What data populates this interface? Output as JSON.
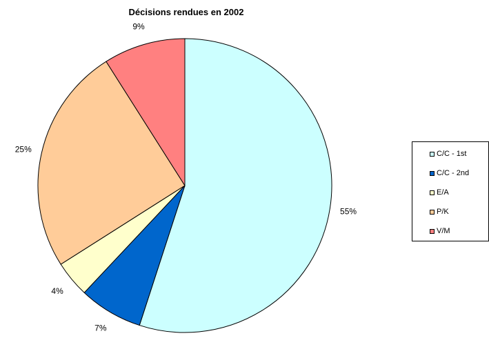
{
  "chart_data": {
    "type": "pie",
    "title": "Décisions rendues en 2002",
    "slices": [
      {
        "name": "C/C - 1st",
        "value": 55,
        "label": "55%",
        "color": "#CCFFFF"
      },
      {
        "name": "C/C - 2nd",
        "value": 7,
        "label": "7%",
        "color": "#0066CC"
      },
      {
        "name": "E/A",
        "value": 4,
        "label": "4%",
        "color": "#FFFFCC"
      },
      {
        "name": "P/K",
        "value": 25,
        "label": "25%",
        "color": "#FFCC99"
      },
      {
        "name": "V/M",
        "value": 9,
        "label": "9%",
        "color": "#FF8080"
      }
    ],
    "start_angle": "12 o'clock",
    "direction": "clockwise",
    "legend_position": "right"
  }
}
